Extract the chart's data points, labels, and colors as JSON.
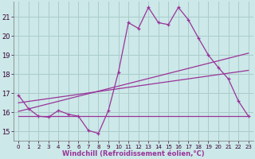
{
  "xlabel": "Windchill (Refroidissement éolien,°C)",
  "bg_color": "#cce8e8",
  "grid_color": "#aacccc",
  "line_color": "#993399",
  "xlim": [
    -0.5,
    23.5
  ],
  "ylim": [
    14.5,
    21.8
  ],
  "yticks": [
    15,
    16,
    17,
    18,
    19,
    20,
    21
  ],
  "xticks": [
    0,
    1,
    2,
    3,
    4,
    5,
    6,
    7,
    8,
    9,
    10,
    11,
    12,
    13,
    14,
    15,
    16,
    17,
    18,
    19,
    20,
    21,
    22,
    23
  ],
  "main_line_x": [
    0,
    1,
    2,
    3,
    4,
    5,
    6,
    7,
    8,
    9,
    10,
    11,
    12,
    13,
    14,
    15,
    16,
    17,
    18,
    19,
    20,
    21,
    22,
    23
  ],
  "main_line_y": [
    16.9,
    16.2,
    15.8,
    15.75,
    16.1,
    15.9,
    15.8,
    15.05,
    14.9,
    16.1,
    18.1,
    20.7,
    20.4,
    21.5,
    20.7,
    20.6,
    21.5,
    20.85,
    19.9,
    19.0,
    18.35,
    17.75,
    16.6,
    15.8
  ],
  "diag_line1_x": [
    0,
    23
  ],
  "diag_line1_y": [
    16.05,
    19.1
  ],
  "diag_line2_x": [
    0,
    23
  ],
  "diag_line2_y": [
    16.5,
    18.2
  ],
  "horiz_line_x": [
    0,
    23
  ],
  "horiz_line_y": [
    15.8,
    15.8
  ]
}
